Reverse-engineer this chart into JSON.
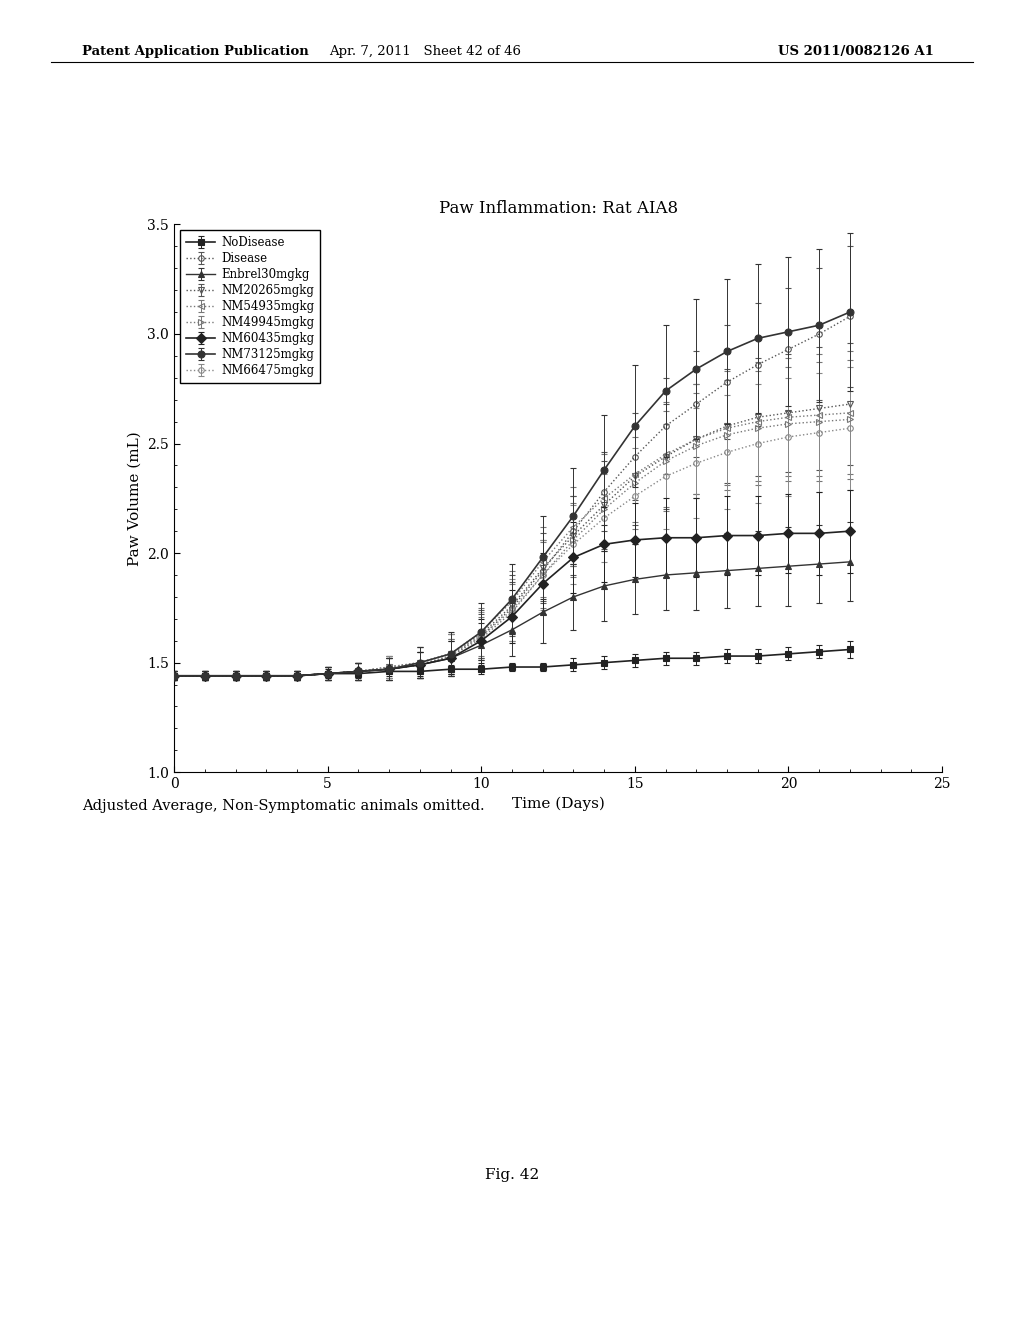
{
  "title": "Paw Inflammation: Rat AIA8",
  "xlabel": "Time (Days)",
  "ylabel": "Paw Volume (mL)",
  "xlim": [
    0,
    25
  ],
  "ylim": [
    1.0,
    3.5
  ],
  "xticks": [
    0,
    5,
    10,
    15,
    20,
    25
  ],
  "yticks": [
    1.0,
    1.5,
    2.0,
    2.5,
    3.0,
    3.5
  ],
  "caption": "Adjusted Average, Non-Symptomatic animals omitted.",
  "fig_label": "Fig. 42",
  "header_left": "Patent Application Publication",
  "header_mid": "Apr. 7, 2011   Sheet 42 of 46",
  "header_right": "US 2011/0082126 A1",
  "series": [
    {
      "label": "NoDisease",
      "marker": "s",
      "linestyle": "-",
      "color": "#222222",
      "linewidth": 1.2,
      "markersize": 4,
      "fillstyle": "full",
      "days": [
        0,
        1,
        2,
        3,
        4,
        5,
        6,
        7,
        8,
        9,
        10,
        11,
        12,
        13,
        14,
        15,
        16,
        17,
        18,
        19,
        20,
        21,
        22
      ],
      "values": [
        1.44,
        1.44,
        1.44,
        1.44,
        1.44,
        1.45,
        1.45,
        1.46,
        1.46,
        1.47,
        1.47,
        1.48,
        1.48,
        1.49,
        1.5,
        1.51,
        1.52,
        1.52,
        1.53,
        1.53,
        1.54,
        1.55,
        1.56
      ],
      "errors": [
        0.02,
        0.02,
        0.02,
        0.02,
        0.02,
        0.02,
        0.02,
        0.02,
        0.02,
        0.02,
        0.02,
        0.02,
        0.02,
        0.03,
        0.03,
        0.03,
        0.03,
        0.03,
        0.03,
        0.03,
        0.03,
        0.03,
        0.04
      ]
    },
    {
      "label": "Disease",
      "marker": "o",
      "linestyle": ":",
      "color": "#555555",
      "linewidth": 1.0,
      "markersize": 4,
      "fillstyle": "none",
      "days": [
        0,
        1,
        2,
        3,
        4,
        5,
        6,
        7,
        8,
        9,
        10,
        11,
        12,
        13,
        14,
        15,
        16,
        17,
        18,
        19,
        20,
        21,
        22
      ],
      "values": [
        1.44,
        1.44,
        1.44,
        1.44,
        1.44,
        1.45,
        1.46,
        1.47,
        1.49,
        1.53,
        1.62,
        1.75,
        1.92,
        2.1,
        2.28,
        2.44,
        2.58,
        2.68,
        2.78,
        2.86,
        2.93,
        3.0,
        3.08
      ],
      "errors": [
        0.02,
        0.02,
        0.02,
        0.02,
        0.02,
        0.03,
        0.04,
        0.05,
        0.06,
        0.08,
        0.1,
        0.12,
        0.14,
        0.16,
        0.18,
        0.2,
        0.22,
        0.24,
        0.26,
        0.28,
        0.28,
        0.3,
        0.32
      ]
    },
    {
      "label": "Enbrel30mgkg",
      "marker": "^",
      "linestyle": "-",
      "color": "#333333",
      "linewidth": 1.0,
      "markersize": 5,
      "fillstyle": "full",
      "days": [
        0,
        1,
        2,
        3,
        4,
        5,
        6,
        7,
        8,
        9,
        10,
        11,
        12,
        13,
        14,
        15,
        16,
        17,
        18,
        19,
        20,
        21,
        22
      ],
      "values": [
        1.44,
        1.44,
        1.44,
        1.44,
        1.44,
        1.45,
        1.46,
        1.47,
        1.49,
        1.52,
        1.58,
        1.65,
        1.73,
        1.8,
        1.85,
        1.88,
        1.9,
        1.91,
        1.92,
        1.93,
        1.94,
        1.95,
        1.96
      ],
      "errors": [
        0.02,
        0.02,
        0.02,
        0.02,
        0.02,
        0.03,
        0.04,
        0.05,
        0.06,
        0.08,
        0.1,
        0.12,
        0.14,
        0.15,
        0.16,
        0.16,
        0.16,
        0.17,
        0.17,
        0.17,
        0.18,
        0.18,
        0.18
      ]
    },
    {
      "label": "NM20265mgkg",
      "marker": "v",
      "linestyle": ":",
      "color": "#555555",
      "linewidth": 1.0,
      "markersize": 4,
      "fillstyle": "none",
      "days": [
        0,
        1,
        2,
        3,
        4,
        5,
        6,
        7,
        8,
        9,
        10,
        11,
        12,
        13,
        14,
        15,
        16,
        17,
        18,
        19,
        20,
        21,
        22
      ],
      "values": [
        1.44,
        1.44,
        1.44,
        1.44,
        1.44,
        1.45,
        1.46,
        1.48,
        1.5,
        1.54,
        1.63,
        1.76,
        1.93,
        2.08,
        2.22,
        2.35,
        2.44,
        2.52,
        2.58,
        2.62,
        2.64,
        2.66,
        2.68
      ],
      "errors": [
        0.02,
        0.02,
        0.02,
        0.02,
        0.02,
        0.03,
        0.04,
        0.05,
        0.07,
        0.09,
        0.11,
        0.14,
        0.16,
        0.18,
        0.2,
        0.22,
        0.24,
        0.25,
        0.26,
        0.27,
        0.27,
        0.28,
        0.28
      ]
    },
    {
      "label": "NM54935mgkg",
      "marker": "<",
      "linestyle": ":",
      "color": "#777777",
      "linewidth": 1.0,
      "markersize": 4,
      "fillstyle": "none",
      "days": [
        0,
        1,
        2,
        3,
        4,
        5,
        6,
        7,
        8,
        9,
        10,
        11,
        12,
        13,
        14,
        15,
        16,
        17,
        18,
        19,
        20,
        21,
        22
      ],
      "values": [
        1.44,
        1.44,
        1.44,
        1.44,
        1.44,
        1.45,
        1.46,
        1.48,
        1.5,
        1.54,
        1.64,
        1.78,
        1.96,
        2.12,
        2.25,
        2.36,
        2.45,
        2.52,
        2.57,
        2.6,
        2.62,
        2.63,
        2.64
      ],
      "errors": [
        0.02,
        0.02,
        0.02,
        0.02,
        0.02,
        0.03,
        0.04,
        0.05,
        0.07,
        0.09,
        0.11,
        0.14,
        0.16,
        0.18,
        0.2,
        0.22,
        0.24,
        0.25,
        0.26,
        0.27,
        0.27,
        0.28,
        0.28
      ]
    },
    {
      "label": "NM49945mgkg",
      "marker": ">",
      "linestyle": ":",
      "color": "#777777",
      "linewidth": 1.0,
      "markersize": 4,
      "fillstyle": "none",
      "days": [
        0,
        1,
        2,
        3,
        4,
        5,
        6,
        7,
        8,
        9,
        10,
        11,
        12,
        13,
        14,
        15,
        16,
        17,
        18,
        19,
        20,
        21,
        22
      ],
      "values": [
        1.44,
        1.44,
        1.44,
        1.44,
        1.44,
        1.45,
        1.46,
        1.47,
        1.49,
        1.53,
        1.61,
        1.73,
        1.9,
        2.06,
        2.2,
        2.32,
        2.42,
        2.49,
        2.54,
        2.57,
        2.59,
        2.6,
        2.61
      ],
      "errors": [
        0.02,
        0.02,
        0.02,
        0.02,
        0.02,
        0.03,
        0.04,
        0.05,
        0.06,
        0.08,
        0.1,
        0.13,
        0.15,
        0.17,
        0.19,
        0.21,
        0.23,
        0.24,
        0.25,
        0.26,
        0.26,
        0.27,
        0.27
      ]
    },
    {
      "label": "NM60435mgkg",
      "marker": "D",
      "linestyle": "-",
      "color": "#222222",
      "linewidth": 1.2,
      "markersize": 5,
      "fillstyle": "full",
      "days": [
        0,
        1,
        2,
        3,
        4,
        5,
        6,
        7,
        8,
        9,
        10,
        11,
        12,
        13,
        14,
        15,
        16,
        17,
        18,
        19,
        20,
        21,
        22
      ],
      "values": [
        1.44,
        1.44,
        1.44,
        1.44,
        1.44,
        1.45,
        1.46,
        1.47,
        1.49,
        1.52,
        1.6,
        1.71,
        1.86,
        1.98,
        2.04,
        2.06,
        2.07,
        2.07,
        2.08,
        2.08,
        2.09,
        2.09,
        2.1
      ],
      "errors": [
        0.02,
        0.02,
        0.02,
        0.02,
        0.02,
        0.03,
        0.04,
        0.05,
        0.06,
        0.08,
        0.1,
        0.12,
        0.14,
        0.16,
        0.17,
        0.17,
        0.18,
        0.18,
        0.18,
        0.18,
        0.18,
        0.19,
        0.19
      ]
    },
    {
      "label": "NM73125mgkg",
      "marker": "o",
      "linestyle": "-",
      "color": "#333333",
      "linewidth": 1.2,
      "markersize": 5,
      "fillstyle": "full",
      "days": [
        0,
        1,
        2,
        3,
        4,
        5,
        6,
        7,
        8,
        9,
        10,
        11,
        12,
        13,
        14,
        15,
        16,
        17,
        18,
        19,
        20,
        21,
        22
      ],
      "values": [
        1.44,
        1.44,
        1.44,
        1.44,
        1.44,
        1.45,
        1.46,
        1.47,
        1.5,
        1.54,
        1.64,
        1.79,
        1.98,
        2.17,
        2.38,
        2.58,
        2.74,
        2.84,
        2.92,
        2.98,
        3.01,
        3.04,
        3.1
      ],
      "errors": [
        0.02,
        0.02,
        0.02,
        0.02,
        0.02,
        0.03,
        0.04,
        0.05,
        0.07,
        0.1,
        0.13,
        0.16,
        0.19,
        0.22,
        0.25,
        0.28,
        0.3,
        0.32,
        0.33,
        0.34,
        0.34,
        0.35,
        0.36
      ]
    },
    {
      "label": "NM66475mgkg",
      "marker": "o",
      "linestyle": ":",
      "color": "#888888",
      "linewidth": 1.0,
      "markersize": 4,
      "fillstyle": "none",
      "days": [
        0,
        1,
        2,
        3,
        4,
        5,
        6,
        7,
        8,
        9,
        10,
        11,
        12,
        13,
        14,
        15,
        16,
        17,
        18,
        19,
        20,
        21,
        22
      ],
      "values": [
        1.44,
        1.44,
        1.44,
        1.44,
        1.44,
        1.45,
        1.46,
        1.48,
        1.5,
        1.54,
        1.62,
        1.74,
        1.9,
        2.04,
        2.16,
        2.26,
        2.35,
        2.41,
        2.46,
        2.5,
        2.53,
        2.55,
        2.57
      ],
      "errors": [
        0.02,
        0.02,
        0.02,
        0.02,
        0.02,
        0.03,
        0.04,
        0.05,
        0.07,
        0.09,
        0.11,
        0.14,
        0.16,
        0.18,
        0.2,
        0.22,
        0.24,
        0.25,
        0.26,
        0.27,
        0.27,
        0.27,
        0.28
      ]
    }
  ]
}
